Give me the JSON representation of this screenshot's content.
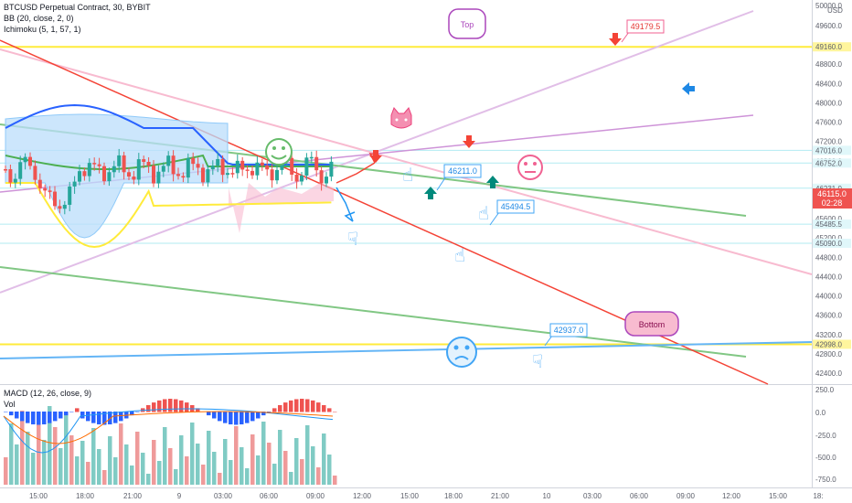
{
  "legends": {
    "symbol": "BTCUSD Perpetual Contract, 30, BYBIT",
    "bb": "BB (20, close, 2, 0)",
    "ichimoku": "Ichimoku (5, 1, 57, 1)",
    "macd": "MACD (12, 26, close, 9)",
    "vol": "Vol"
  },
  "price_axis": {
    "currency": "USD",
    "ticks": [
      "50000.0",
      "49600.0",
      "48800.0",
      "48400.0",
      "48000.0",
      "47600.0",
      "47200.0",
      "46800.0",
      "45600.0",
      "45200.0",
      "44800.0",
      "44400.0",
      "44000.0",
      "43600.0",
      "43200.0",
      "42800.0",
      "42400.0"
    ],
    "level_tags": [
      "49160.0",
      "47016.0",
      "46752.0",
      "46231.0",
      "45485.5",
      "45090.0",
      "42998.0"
    ],
    "last_price": "46115.0",
    "countdown": "02:28"
  },
  "macd_axis": {
    "ticks": [
      "250.0",
      "0.0",
      "-250.0",
      "-500.0",
      "-750.0"
    ]
  },
  "time_axis": {
    "ticks": [
      "15:00",
      "18:00",
      "21:00",
      "9",
      "03:00",
      "06:00",
      "09:00",
      "12:00",
      "15:00",
      "18:00",
      "21:00",
      "10",
      "03:00",
      "06:00",
      "09:00",
      "12:00",
      "15:00",
      "18:"
    ]
  },
  "annotations": {
    "top": "Top",
    "bottom": "Bottom",
    "callouts": [
      "49179.5",
      "46211.0",
      "45494.5",
      "42937.0"
    ]
  },
  "colors": {
    "up": "#26a69a",
    "down": "#ef5350",
    "bb_basis": "#4caf50",
    "bb_band": "#2962ff",
    "kumo": "#90caf9",
    "yellow_line": "#ffeb3b",
    "pink_line": "#e1bee7",
    "magenta_line": "#ce93d8",
    "salmon_line": "#f8bbd0",
    "green_trend": "#66bb6a",
    "red_trend": "#f44336",
    "blue_trend": "#64b5f6",
    "callout_border": "#f06292"
  },
  "chart_data": {
    "type": "candlestick",
    "instrument": "BTCUSD Perpetual Contract",
    "timeframe": "30",
    "exchange": "BYBIT",
    "price_range": [
      42200,
      50000
    ],
    "last_price": 46115.0,
    "horizontal_levels": [
      49160.0,
      47016.0,
      46752.0,
      46231.0,
      45485.5,
      45090.0,
      42998.0
    ],
    "callouts": [
      49179.5,
      46211.0,
      45494.5,
      42937.0
    ],
    "macd_range": [
      -800,
      260
    ]
  }
}
